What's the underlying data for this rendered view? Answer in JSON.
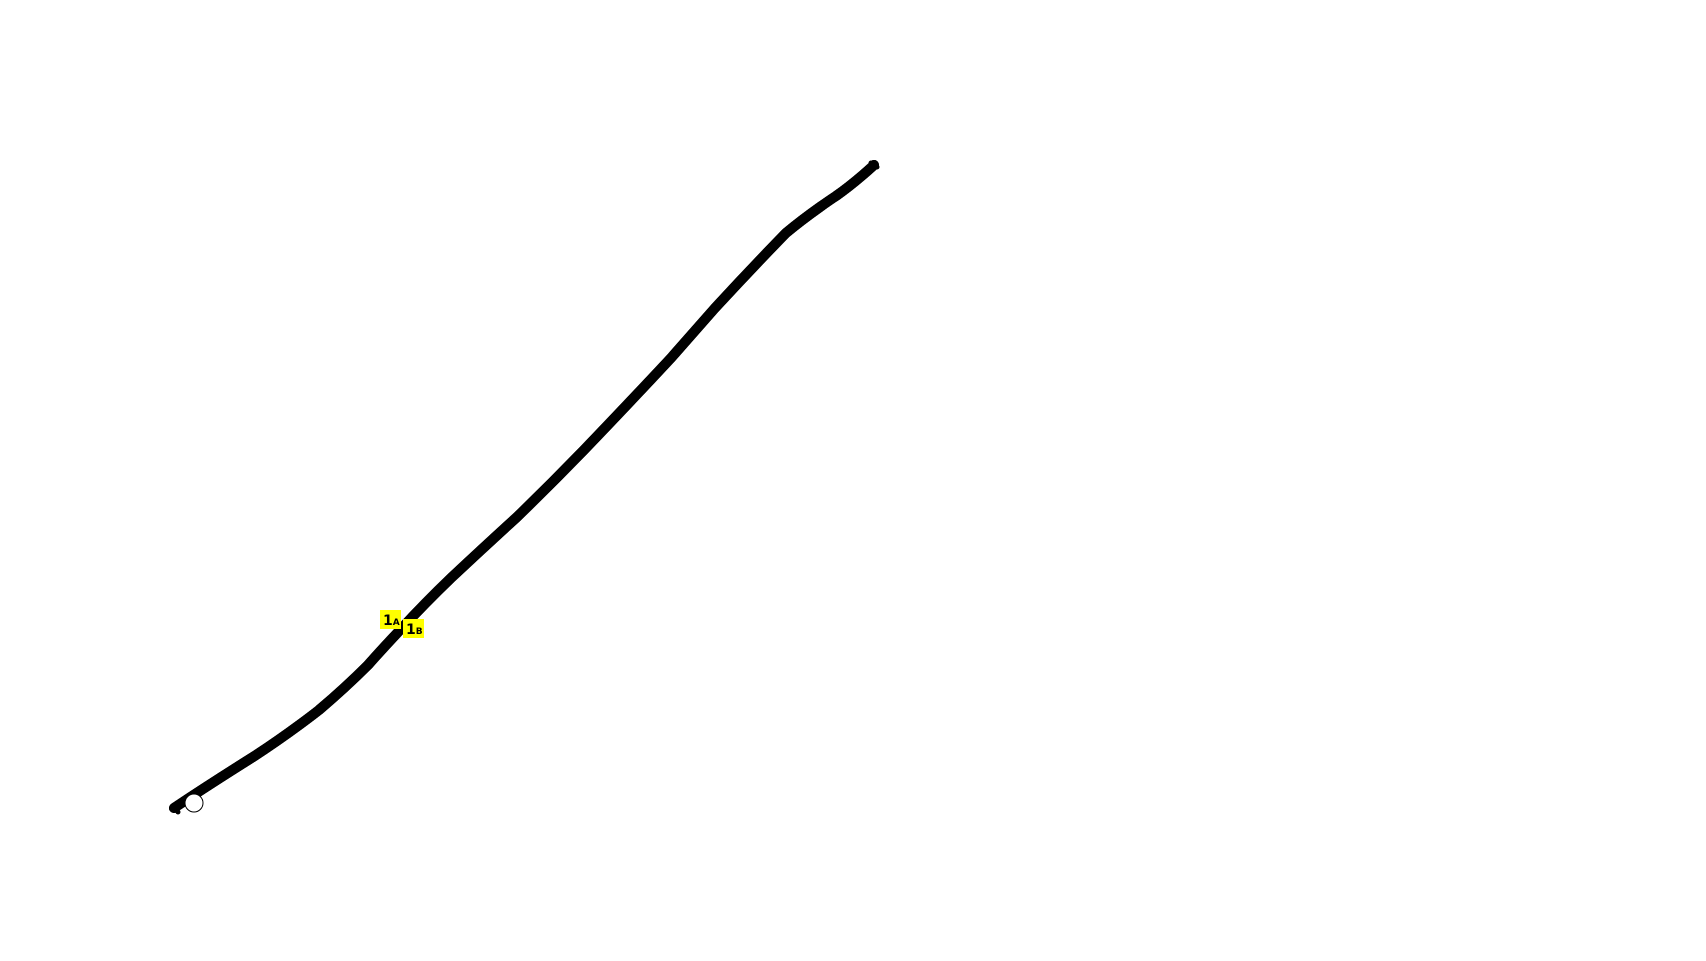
{
  "exit_labels": [
    {
      "number": "1",
      "suffix": "A"
    },
    {
      "number": "1",
      "suffix": "B"
    }
  ]
}
